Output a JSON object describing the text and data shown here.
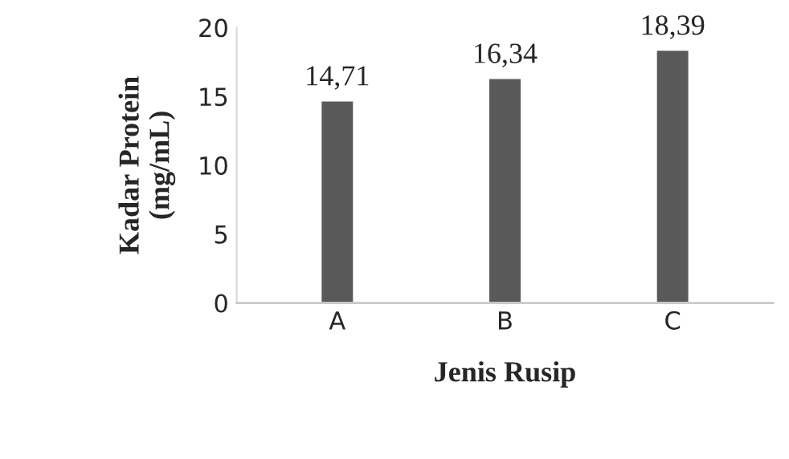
{
  "chart_data": {
    "type": "bar",
    "xlabel": "Jenis Rusip",
    "ylabel": "Kadar Protein\n(mg/mL)",
    "categories": [
      "A",
      "B",
      "C"
    ],
    "values": [
      14.71,
      16.34,
      18.39
    ],
    "value_labels": [
      "14,71",
      "16,34",
      "18,39"
    ],
    "color": "#595959",
    "ylim": [
      0,
      20
    ],
    "yticks": [
      0,
      5,
      10,
      15,
      20
    ],
    "grid": false,
    "legend": false
  }
}
